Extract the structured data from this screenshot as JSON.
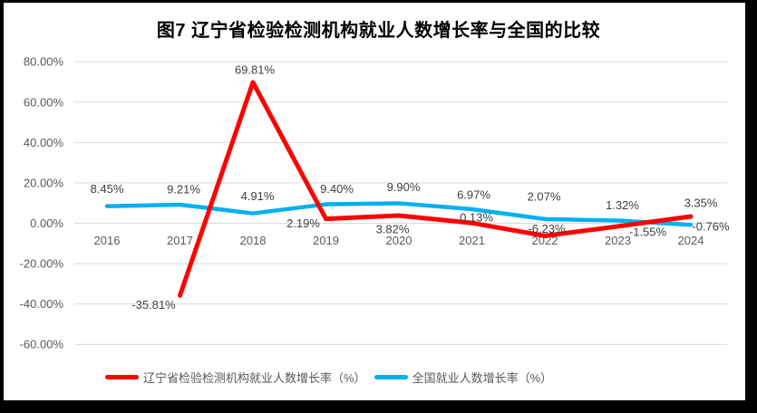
{
  "title": "图7 辽宁省检验检测机构就业人数增长率与全国的比较",
  "chart_data": {
    "type": "line",
    "x": [
      "2016",
      "2017",
      "2018",
      "2019",
      "2020",
      "2021",
      "2022",
      "2023",
      "2024"
    ],
    "series": [
      {
        "name": "辽宁省检验检测机构就业人数增长率（%）",
        "color": "#ff0000",
        "values": [
          null,
          -35.81,
          69.81,
          2.19,
          3.82,
          0.13,
          -6.23,
          -1.55,
          3.35
        ],
        "labels": [
          "",
          "-35.81%",
          "69.81%",
          "2.19%",
          "3.82%",
          "0.13%",
          "-6.23%",
          "-1.55%",
          "3.35%"
        ],
        "label_offsets": [
          [
            0,
            0
          ],
          [
            -29,
            10
          ],
          [
            2,
            -14
          ],
          [
            -25,
            5
          ],
          [
            -7,
            15
          ],
          [
            5,
            -6
          ],
          [
            2,
            -8
          ],
          [
            33,
            6
          ],
          [
            11,
            -15
          ]
        ]
      },
      {
        "name": "全国就业人数增长率（%）",
        "color": "#00b0f0",
        "values": [
          8.45,
          9.21,
          4.91,
          9.4,
          9.9,
          6.97,
          2.07,
          1.32,
          -0.76
        ],
        "labels": [
          "8.45%",
          "9.21%",
          "4.91%",
          "9.40%",
          "9.90%",
          "6.97%",
          "2.07%",
          "1.32%",
          "-0.76%"
        ],
        "label_offsets": [
          [
            0,
            -19
          ],
          [
            4,
            -17
          ],
          [
            5,
            -19
          ],
          [
            12,
            -17
          ],
          [
            5,
            -18
          ],
          [
            2,
            -16
          ],
          [
            -1,
            -25
          ],
          [
            5,
            -17
          ],
          [
            22,
            2
          ]
        ]
      }
    ],
    "y_ticks": [
      "80.00%",
      "60.00%",
      "40.00%",
      "20.00%",
      "0.00%",
      "-20.00%",
      "-40.00%",
      "-60.00%"
    ],
    "ylim": [
      -60,
      80
    ],
    "y_step": 20,
    "grid": true,
    "legend_position": "bottom"
  },
  "colors": {
    "grid_line": "#d9d9d9",
    "axis_text": "#595959",
    "data_label_text": "#404040",
    "title_text": "#000000",
    "window_border": "#000000"
  }
}
